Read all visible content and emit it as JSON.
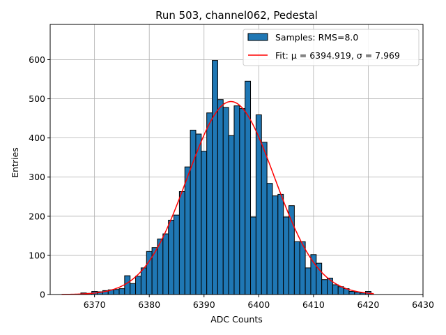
{
  "chart_data": {
    "type": "bar",
    "title": "Run 503, channel062, Pedestal",
    "xlabel": "ADC Counts",
    "ylabel": "Entries",
    "xlim": [
      6361.9,
      6430.0
    ],
    "ylim": [
      0,
      690
    ],
    "xticks": [
      6370,
      6380,
      6390,
      6400,
      6410,
      6420,
      6430
    ],
    "yticks": [
      0,
      100,
      200,
      300,
      400,
      500,
      600
    ],
    "grid": true,
    "legend_position": "top-right",
    "bin_width": 1,
    "bins": [
      {
        "x": 6368,
        "y": 4
      },
      {
        "x": 6369,
        "y": 3
      },
      {
        "x": 6370,
        "y": 8
      },
      {
        "x": 6371,
        "y": 7
      },
      {
        "x": 6372,
        "y": 10
      },
      {
        "x": 6373,
        "y": 12
      },
      {
        "x": 6374,
        "y": 13
      },
      {
        "x": 6375,
        "y": 15
      },
      {
        "x": 6376,
        "y": 48
      },
      {
        "x": 6377,
        "y": 28
      },
      {
        "x": 6378,
        "y": 47
      },
      {
        "x": 6379,
        "y": 68
      },
      {
        "x": 6380,
        "y": 110
      },
      {
        "x": 6381,
        "y": 120
      },
      {
        "x": 6382,
        "y": 142
      },
      {
        "x": 6383,
        "y": 155
      },
      {
        "x": 6384,
        "y": 190
      },
      {
        "x": 6385,
        "y": 203
      },
      {
        "x": 6386,
        "y": 263
      },
      {
        "x": 6387,
        "y": 326
      },
      {
        "x": 6388,
        "y": 420
      },
      {
        "x": 6389,
        "y": 410
      },
      {
        "x": 6390,
        "y": 366
      },
      {
        "x": 6391,
        "y": 464
      },
      {
        "x": 6392,
        "y": 598
      },
      {
        "x": 6393,
        "y": 498
      },
      {
        "x": 6394,
        "y": 478
      },
      {
        "x": 6395,
        "y": 406
      },
      {
        "x": 6396,
        "y": 482
      },
      {
        "x": 6397,
        "y": 475
      },
      {
        "x": 6398,
        "y": 545
      },
      {
        "x": 6399,
        "y": 198
      },
      {
        "x": 6400,
        "y": 459
      },
      {
        "x": 6401,
        "y": 389
      },
      {
        "x": 6402,
        "y": 284
      },
      {
        "x": 6403,
        "y": 252
      },
      {
        "x": 6404,
        "y": 256
      },
      {
        "x": 6405,
        "y": 198
      },
      {
        "x": 6406,
        "y": 227
      },
      {
        "x": 6407,
        "y": 135
      },
      {
        "x": 6408,
        "y": 135
      },
      {
        "x": 6409,
        "y": 68
      },
      {
        "x": 6410,
        "y": 102
      },
      {
        "x": 6411,
        "y": 80
      },
      {
        "x": 6412,
        "y": 38
      },
      {
        "x": 6413,
        "y": 42
      },
      {
        "x": 6414,
        "y": 25
      },
      {
        "x": 6415,
        "y": 20
      },
      {
        "x": 6416,
        "y": 15
      },
      {
        "x": 6417,
        "y": 8
      },
      {
        "x": 6418,
        "y": 6
      },
      {
        "x": 6419,
        "y": 4
      },
      {
        "x": 6420,
        "y": 8
      }
    ],
    "series": [
      {
        "name": "Samples: RMS=8.0",
        "kind": "histogram",
        "color": "#1f77b4",
        "edge_color": "#000000"
      },
      {
        "name": "Fit: μ = 6394.919, σ = 7.969",
        "kind": "gaussian-fit",
        "color": "#ff0000",
        "mu": 6394.919,
        "sigma": 7.969,
        "amplitude": 493,
        "x_range": [
          6364,
          6421
        ]
      }
    ]
  }
}
